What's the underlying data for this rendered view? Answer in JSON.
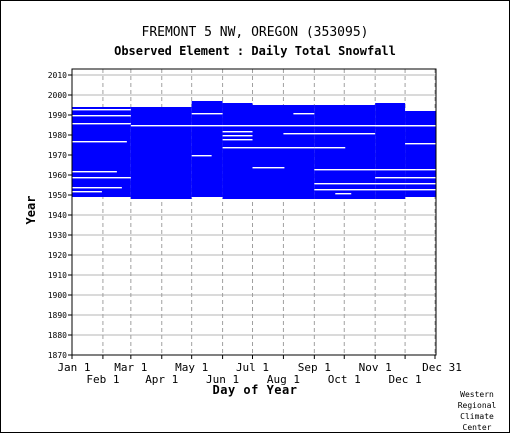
{
  "chart_data": {
    "type": "heatmap",
    "title": "FREMONT 5 NW, OREGON   (353095)",
    "subtitle": "Observed Element : Daily Total Snowfall",
    "xlabel": "Day of Year",
    "ylabel": "Year",
    "x_range_day_of_year": [
      1,
      365
    ],
    "ylim": [
      1870,
      2010
    ],
    "grid": true,
    "marker_color": "#0000ff",
    "yticks": [
      1870,
      1880,
      1890,
      1900,
      1910,
      1920,
      1930,
      1940,
      1950,
      1960,
      1970,
      1980,
      1990,
      2000,
      2010
    ],
    "xticks_top_row": [
      {
        "label": "Jan 1",
        "day": 1
      },
      {
        "label": "Mar 1",
        "day": 60
      },
      {
        "label": "May 1",
        "day": 121
      },
      {
        "label": "Jul 1",
        "day": 182
      },
      {
        "label": "Sep 1",
        "day": 244
      },
      {
        "label": "Nov 1",
        "day": 305
      },
      {
        "label": "Dec 31",
        "day": 365
      }
    ],
    "xticks_bottom_row": [
      {
        "label": "Feb 1",
        "day": 32
      },
      {
        "label": "Apr 1",
        "day": 91
      },
      {
        "label": "Jun 1",
        "day": 152
      },
      {
        "label": "Aug 1",
        "day": 213
      },
      {
        "label": "Oct 1",
        "day": 274
      },
      {
        "label": "Dec 1",
        "day": 335
      }
    ],
    "coverage_periods": [
      {
        "start_day": 1,
        "end_day": 59,
        "first_year": 1949,
        "last_year": 1993
      },
      {
        "start_day": 60,
        "end_day": 120,
        "first_year": 1948,
        "last_year": 1993
      },
      {
        "start_day": 121,
        "end_day": 151,
        "first_year": 1949,
        "last_year": 1996
      },
      {
        "start_day": 152,
        "end_day": 181,
        "first_year": 1948,
        "last_year": 1995
      },
      {
        "start_day": 182,
        "end_day": 243,
        "first_year": 1948,
        "last_year": 1994
      },
      {
        "start_day": 244,
        "end_day": 304,
        "first_year": 1948,
        "last_year": 1994
      },
      {
        "start_day": 305,
        "end_day": 334,
        "first_year": 1948,
        "last_year": 1995
      },
      {
        "start_day": 335,
        "end_day": 365,
        "first_year": 1949,
        "last_year": 1991
      }
    ],
    "missing_segments": [
      {
        "year": 1951,
        "start_day": 1,
        "end_day": 30
      },
      {
        "year": 1953,
        "start_day": 1,
        "end_day": 50
      },
      {
        "year": 1958,
        "start_day": 1,
        "end_day": 59
      },
      {
        "year": 1961,
        "start_day": 1,
        "end_day": 45
      },
      {
        "year": 1976,
        "start_day": 1,
        "end_day": 55
      },
      {
        "year": 1985,
        "start_day": 1,
        "end_day": 59
      },
      {
        "year": 1989,
        "start_day": 1,
        "end_day": 59
      },
      {
        "year": 1992,
        "start_day": 1,
        "end_day": 59
      },
      {
        "year": 1984,
        "start_day": 60,
        "end_day": 365
      },
      {
        "year": 1948,
        "start_day": 121,
        "end_day": 151
      },
      {
        "year": 1969,
        "start_day": 121,
        "end_day": 140
      },
      {
        "year": 1990,
        "start_day": 121,
        "end_day": 151
      },
      {
        "year": 1981,
        "start_day": 152,
        "end_day": 181
      },
      {
        "year": 1979,
        "start_day": 152,
        "end_day": 181
      },
      {
        "year": 1977,
        "start_day": 152,
        "end_day": 181
      },
      {
        "year": 1973,
        "start_day": 152,
        "end_day": 243
      },
      {
        "year": 1963,
        "start_day": 182,
        "end_day": 213
      },
      {
        "year": 1990,
        "start_day": 223,
        "end_day": 243
      },
      {
        "year": 1980,
        "start_day": 213,
        "end_day": 304
      },
      {
        "year": 1973,
        "start_day": 244,
        "end_day": 274
      },
      {
        "year": 1962,
        "start_day": 244,
        "end_day": 365
      },
      {
        "year": 1955,
        "start_day": 244,
        "end_day": 365
      },
      {
        "year": 1952,
        "start_day": 244,
        "end_day": 365
      },
      {
        "year": 1950,
        "start_day": 265,
        "end_day": 280
      },
      {
        "year": 1958,
        "start_day": 305,
        "end_day": 365
      },
      {
        "year": 1975,
        "start_day": 335,
        "end_day": 365
      },
      {
        "year": 1984,
        "start_day": 305,
        "end_day": 365
      }
    ]
  },
  "credit": "Western\nRegional\nClimate\nCenter"
}
